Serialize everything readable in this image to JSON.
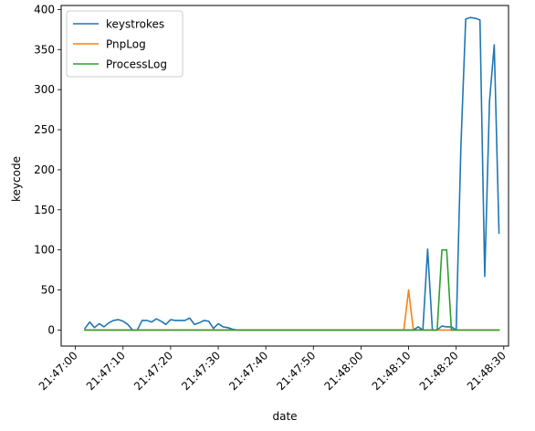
{
  "chart_data": {
    "type": "line",
    "xlabel": "date",
    "ylabel": "keycode",
    "x_ticks": [
      "21:47:00",
      "21:47:10",
      "21:47:20",
      "21:47:30",
      "21:47:40",
      "21:47:50",
      "21:48:00",
      "21:48:10",
      "21:48:20",
      "21:48:30"
    ],
    "y_ticks": [
      0,
      50,
      100,
      150,
      200,
      250,
      300,
      350,
      400
    ],
    "xlim": [
      "21:46:57",
      "21:48:31"
    ],
    "ylim": [
      -20,
      405
    ],
    "grid": false,
    "legend_position": "upper-left",
    "series": [
      {
        "name": "keystrokes",
        "color": "#1f77b4",
        "points": [
          [
            "21:47:02",
            2
          ],
          [
            "21:47:03",
            10
          ],
          [
            "21:47:04",
            3
          ],
          [
            "21:47:05",
            8
          ],
          [
            "21:47:06",
            4
          ],
          [
            "21:47:07",
            9
          ],
          [
            "21:47:08",
            12
          ],
          [
            "21:47:09",
            13
          ],
          [
            "21:47:10",
            11
          ],
          [
            "21:47:11",
            7
          ],
          [
            "21:47:12",
            0
          ],
          [
            "21:47:13",
            0
          ],
          [
            "21:47:14",
            12
          ],
          [
            "21:47:15",
            12
          ],
          [
            "21:47:16",
            10
          ],
          [
            "21:47:17",
            14
          ],
          [
            "21:47:18",
            11
          ],
          [
            "21:47:19",
            7
          ],
          [
            "21:47:20",
            13
          ],
          [
            "21:47:21",
            12
          ],
          [
            "21:47:22",
            12
          ],
          [
            "21:47:23",
            12
          ],
          [
            "21:47:24",
            15
          ],
          [
            "21:47:25",
            7
          ],
          [
            "21:47:26",
            9
          ],
          [
            "21:47:27",
            12
          ],
          [
            "21:47:28",
            11
          ],
          [
            "21:47:29",
            2
          ],
          [
            "21:47:30",
            8
          ],
          [
            "21:47:31",
            4
          ],
          [
            "21:47:32",
            3
          ],
          [
            "21:47:33",
            1
          ],
          [
            "21:47:34",
            0
          ],
          [
            "21:48:10",
            0
          ],
          [
            "21:48:11",
            0
          ],
          [
            "21:48:12",
            4
          ],
          [
            "21:48:13",
            0
          ],
          [
            "21:48:14",
            101
          ],
          [
            "21:48:15",
            0
          ],
          [
            "21:48:16",
            0
          ],
          [
            "21:48:17",
            5
          ],
          [
            "21:48:18",
            4
          ],
          [
            "21:48:19",
            4
          ],
          [
            "21:48:20",
            0
          ],
          [
            "21:48:21",
            230
          ],
          [
            "21:48:22",
            388
          ],
          [
            "21:48:23",
            390
          ],
          [
            "21:48:24",
            389
          ],
          [
            "21:48:25",
            387
          ],
          [
            "21:48:26",
            67
          ],
          [
            "21:48:27",
            285
          ],
          [
            "21:48:28",
            356
          ],
          [
            "21:48:29",
            121
          ]
        ]
      },
      {
        "name": "PnpLog",
        "color": "#ff7f0e",
        "points": [
          [
            "21:47:02",
            0
          ],
          [
            "21:48:09",
            0
          ],
          [
            "21:48:10",
            50
          ],
          [
            "21:48:11",
            0
          ],
          [
            "21:48:29",
            0
          ]
        ]
      },
      {
        "name": "ProcessLog",
        "color": "#2ca02c",
        "points": [
          [
            "21:47:02",
            0
          ],
          [
            "21:48:16",
            0
          ],
          [
            "21:48:17",
            100
          ],
          [
            "21:48:18",
            100
          ],
          [
            "21:48:19",
            0
          ],
          [
            "21:48:29",
            0
          ]
        ]
      }
    ]
  }
}
